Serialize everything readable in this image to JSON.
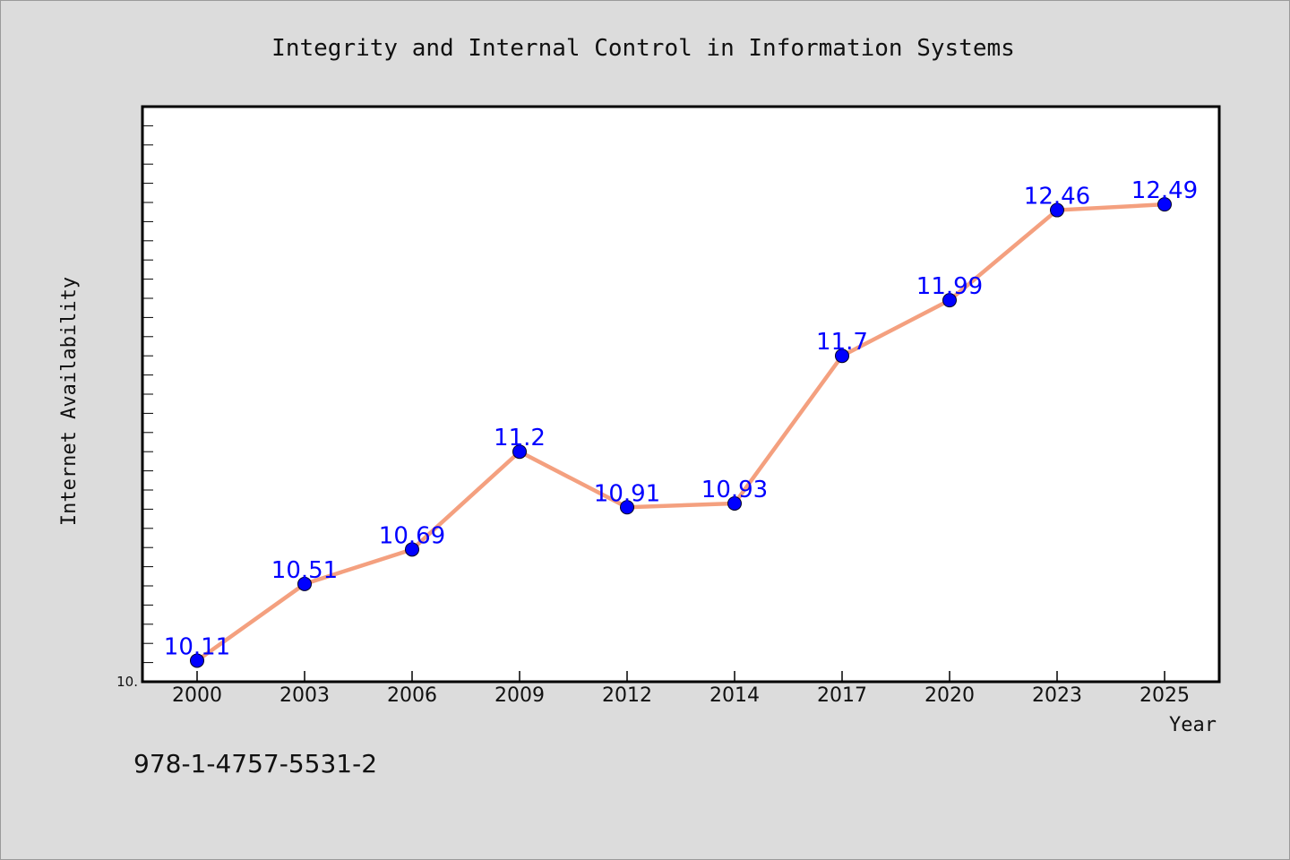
{
  "chart_data": {
    "type": "line",
    "title": "Integrity and Internal Control in Information Systems",
    "xlabel": "Year",
    "ylabel": "Internet Availability",
    "categories": [
      "2000",
      "2003",
      "2006",
      "2009",
      "2012",
      "2014",
      "2017",
      "2020",
      "2023",
      "2025"
    ],
    "series": [
      {
        "values": [
          10.11,
          10.51,
          10.69,
          11.2,
          10.91,
          10.93,
          11.7,
          11.99,
          12.46,
          12.49
        ],
        "labels": [
          "10.11",
          "10.51",
          "10.69",
          "11.2",
          "10.91",
          "10.93",
          "11.7",
          "11.99",
          "12.46",
          "12.49"
        ]
      }
    ],
    "ylim": [
      10.0,
      13.0
    ],
    "y_tick_labels": [
      "10."
    ],
    "grid": false,
    "colors": {
      "line": "#f4a07f",
      "marker": "#0000ff",
      "label": "#0000ff"
    }
  },
  "footnote": "978-1-4757-5531-2"
}
